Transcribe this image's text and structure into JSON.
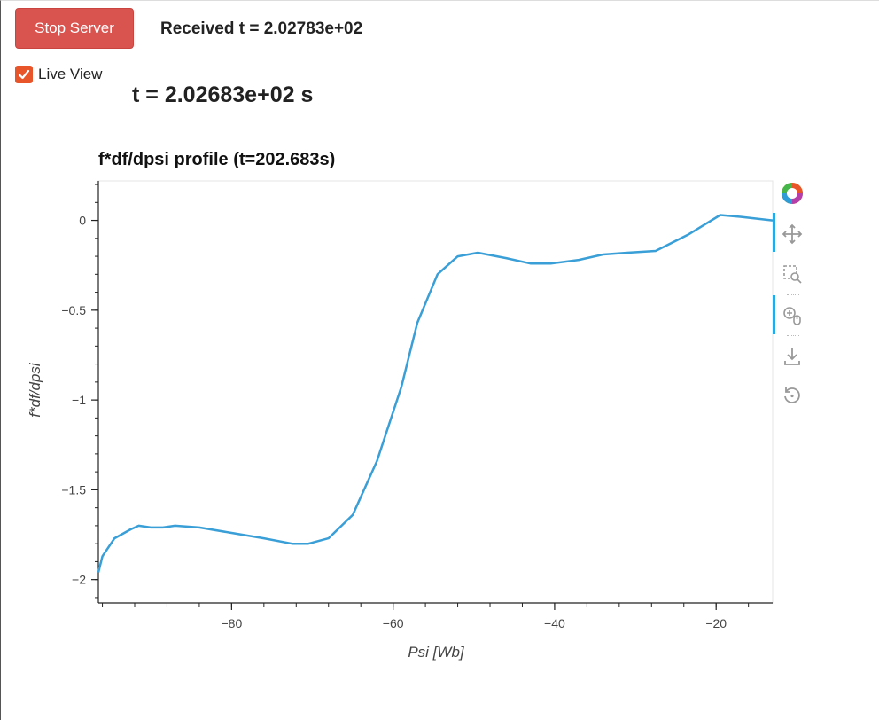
{
  "controls": {
    "stop_button_label": "Stop Server",
    "received_text": "Received t = 2.02783e+02",
    "live_view_label": "Live View",
    "live_view_checked": true,
    "time_display": "t = 2.02683e+02 s"
  },
  "toolbar": {
    "tools": [
      "bokeh-logo",
      "pan",
      "box-zoom",
      "wheel-zoom",
      "save",
      "reset"
    ]
  },
  "colors": {
    "accent": "#26aae1",
    "line": "#3a9fd6",
    "stop_button": "#d9534f",
    "checkbox": "#e8552b"
  },
  "chart_data": {
    "type": "line",
    "title": "f*df/dpsi profile (t=202.683s)",
    "xlabel": "Psi [Wb]",
    "ylabel": "f*df/dpsi",
    "xlim": [
      -96.5,
      -13
    ],
    "ylim": [
      -2.13,
      0.22
    ],
    "x_ticks": [
      -80,
      -60,
      -40,
      -20
    ],
    "x_tick_labels": [
      "−80",
      "−60",
      "−40",
      "−20"
    ],
    "y_ticks": [
      0,
      -0.5,
      -1,
      -1.5,
      -2
    ],
    "y_tick_labels": [
      "0",
      "−0.5",
      "−1",
      "−1.5",
      "−2"
    ],
    "series": [
      {
        "x": [
          -96.5,
          -96,
          -94.5,
          -92.5,
          -91.5,
          -90,
          -88.5,
          -87,
          -84,
          -80,
          -76,
          -72.5,
          -70.5,
          -68,
          -65,
          -62,
          -59,
          -57,
          -54.5,
          -52,
          -49.5,
          -46,
          -43,
          -40.5,
          -37,
          -34,
          -31,
          -27.5,
          -23.5,
          -19.5,
          -17,
          -13
        ],
        "y": [
          -1.96,
          -1.87,
          -1.77,
          -1.72,
          -1.7,
          -1.71,
          -1.71,
          -1.7,
          -1.71,
          -1.74,
          -1.77,
          -1.8,
          -1.8,
          -1.77,
          -1.64,
          -1.34,
          -0.93,
          -0.57,
          -0.3,
          -0.2,
          -0.18,
          -0.21,
          -0.24,
          -0.24,
          -0.22,
          -0.19,
          -0.18,
          -0.17,
          -0.08,
          0.03,
          0.02,
          0.0
        ]
      }
    ]
  }
}
